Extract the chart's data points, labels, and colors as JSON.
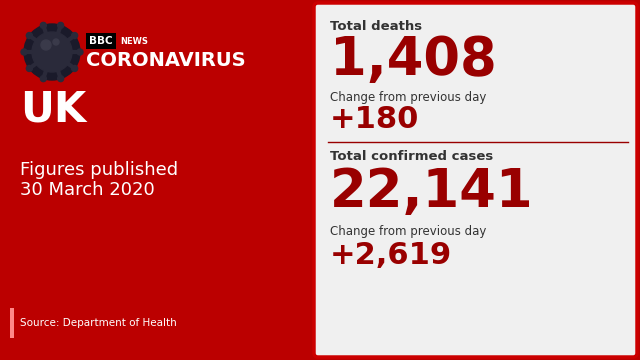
{
  "left_bg_color": "#bb0000",
  "right_bg_color": "#f0f0f0",
  "country": "UK",
  "figures_label": "Figures published",
  "date": "30 March 2020",
  "source": "Source: Department of Health",
  "bbc_label": "BBC",
  "news_label": "NEWS",
  "coronavirus": "CORONAVIRUS",
  "stat1_label": "Total deaths",
  "stat1_value": "1,408",
  "stat1_change_label": "Change from previous day",
  "stat1_change": "+180",
  "stat2_label": "Total confirmed cases",
  "stat2_value": "22,141",
  "stat2_change_label": "Change from previous day",
  "stat2_change": "+2,619",
  "dark_red": "#990000",
  "light_red": "#cc0000",
  "text_dark": "#333333",
  "text_white": "#ffffff",
  "right_border_color": "#cc0000",
  "source_bar_color": "#ff6666",
  "virus_body_color": "#222233",
  "virus_spike_color": "#1a1a2e"
}
